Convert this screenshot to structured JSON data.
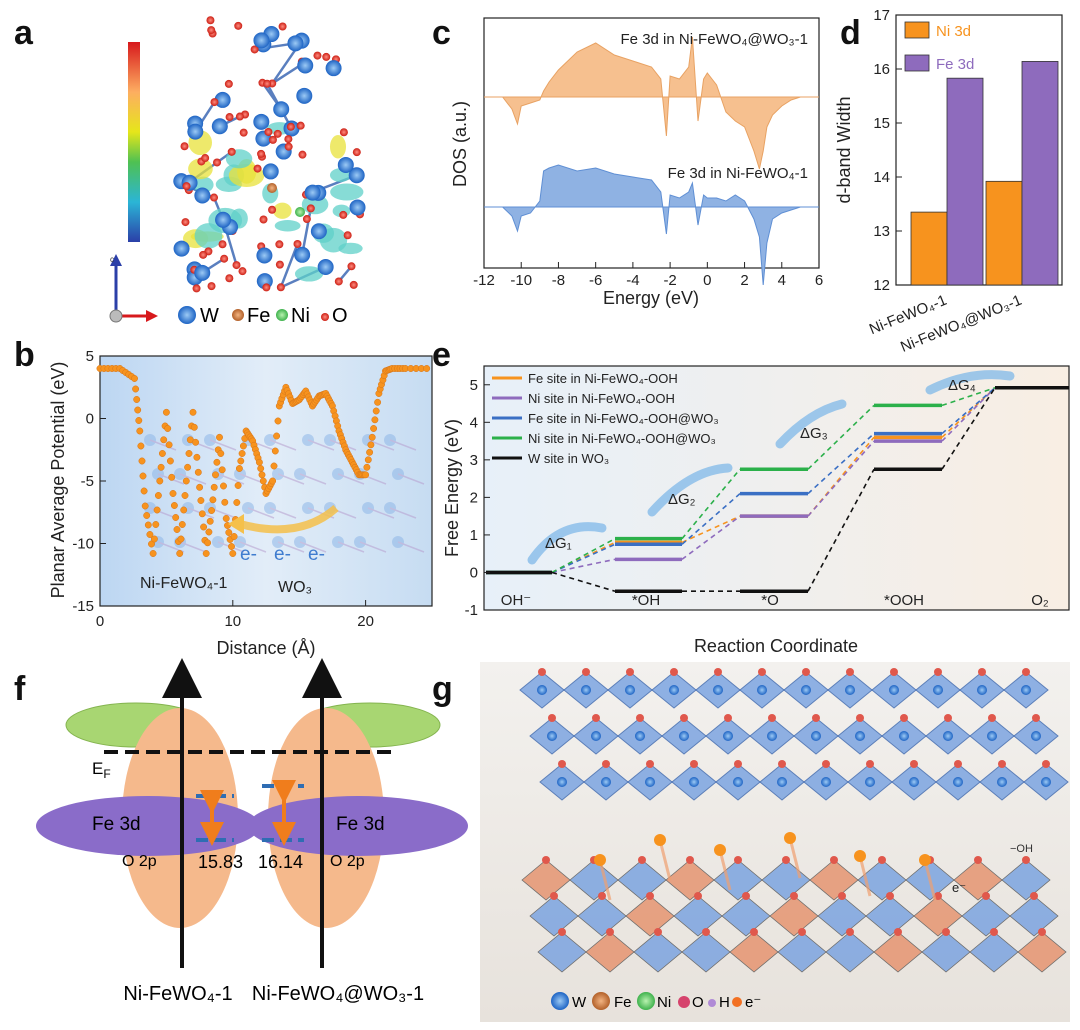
{
  "panels": {
    "a": "a",
    "b": "b",
    "c": "c",
    "d": "d",
    "e": "e",
    "f": "f",
    "g": "g"
  },
  "colors": {
    "orange": "#f7931e",
    "purple": "#8e6bbd",
    "blue": "#3a6fc4",
    "green": "#2bb04a",
    "black": "#111111",
    "dos_top": "#f6c08f",
    "dos_bottom": "#8fb2e3",
    "fe_band": "#8a6cc9",
    "o_band": "#f5b98c",
    "ef_band": "#a8d672"
  },
  "panel_a": {
    "axis_label": "c",
    "legend": [
      {
        "symbol": "W",
        "color": "#2f80d6"
      },
      {
        "symbol": "Fe",
        "color": "#c9733a"
      },
      {
        "symbol": "Ni",
        "color": "#55c86a"
      },
      {
        "symbol": "O",
        "color": "#e0342a"
      }
    ]
  },
  "chart_data": [
    {
      "id": "b",
      "type": "line",
      "title": "",
      "xlabel": "Distance (Å)",
      "ylabel": "Planar Average Potential (eV)",
      "xlim": [
        0,
        25
      ],
      "ylim": [
        -15,
        5
      ],
      "xticks": [
        "0",
        "10",
        "20"
      ],
      "yticks": [
        "5",
        "0",
        "-5",
        "-10",
        "-15"
      ],
      "series": [
        {
          "name": "Planar average potential",
          "x": [
            0,
            1.5,
            2.6,
            3.0,
            3.4,
            4.0,
            4.5,
            5.0,
            5.5,
            6.0,
            6.5,
            7.0,
            7.5,
            8.0,
            8.5,
            9.0,
            9.5,
            10.0,
            10.5,
            11.0,
            11.5,
            12.0,
            12.5,
            13.0,
            13.5,
            14.0,
            14.5,
            15.0,
            15.5,
            16.0,
            16.5,
            17.0,
            17.5,
            18.0,
            18.5,
            19.0,
            19.5,
            20.0,
            20.5,
            21.0,
            21.5,
            22.0,
            23.0,
            25.0
          ],
          "y": [
            4.0,
            4.0,
            3.2,
            -1.0,
            -7.0,
            -10.8,
            -5.0,
            0.5,
            -6.0,
            -10.8,
            -5.0,
            0.5,
            -5.5,
            -10.8,
            -6.5,
            -1.5,
            -8.0,
            -10.8,
            -4.0,
            -1.0,
            -1.8,
            -3.5,
            -6.0,
            -5.0,
            1.0,
            2.5,
            1.2,
            1.5,
            2.2,
            1.0,
            1.8,
            2.0,
            1.0,
            -1.0,
            -2.5,
            -3.5,
            -4.5,
            -4.5,
            -1.5,
            2.0,
            3.8,
            4.0,
            4.0,
            4.0
          ]
        }
      ],
      "annotations": [
        "Ni-FeWO₄-1",
        "WO₃",
        "e-",
        "e-",
        "e-"
      ]
    },
    {
      "id": "c",
      "type": "area",
      "title": "",
      "xlabel": "Energy (eV)",
      "ylabel": "DOS (a.u.)",
      "xlim": [
        -12,
        6
      ],
      "xticks": [
        "-12",
        "-10",
        "-8",
        "-6",
        "-4",
        "-2",
        "0",
        "2",
        "4",
        "6"
      ],
      "series": [
        {
          "name": "Fe 3d in Ni-FeWO₄@WO₃-1",
          "x": [
            -12,
            -11,
            -10.5,
            -10.2,
            -10,
            -9.5,
            -9,
            -8.8,
            -8.5,
            -8,
            -7,
            -6,
            -5,
            -4,
            -3,
            -2.5,
            -2.2,
            -2,
            -1.5,
            -1,
            -0.8,
            -0.5,
            -0.2,
            0,
            0.5,
            1,
            1.5,
            2,
            2.5,
            2.8,
            3,
            3.2,
            3.5,
            4,
            4.5,
            5,
            6
          ],
          "y": [
            0,
            0,
            -0.4,
            -0.9,
            -0.3,
            -0.2,
            -0.1,
            0.2,
            0.5,
            0.9,
            1.5,
            1.8,
            1.4,
            1.2,
            1.0,
            0.6,
            -1.3,
            0.7,
            0.6,
            1.0,
            2.0,
            -0.8,
            0.6,
            0.8,
            0.4,
            -0.5,
            -0.8,
            -1.0,
            -1.8,
            -2.4,
            -1.8,
            -1.0,
            -0.6,
            -0.3,
            -0.1,
            0,
            0
          ]
        },
        {
          "name": "Fe 3d in Ni-FeWO₄-1",
          "x": [
            -12,
            -11,
            -10.5,
            -10.2,
            -10,
            -9.5,
            -9,
            -8.8,
            -8.5,
            -8,
            -7,
            -6,
            -5,
            -4,
            -3,
            -2.5,
            -2.2,
            -2,
            -1.5,
            -1,
            -0.8,
            -0.5,
            -0.2,
            0,
            0.5,
            1,
            1.5,
            2,
            2.5,
            2.8,
            3,
            3.2,
            3.5,
            4,
            4.5,
            5,
            6
          ],
          "y": [
            0,
            0,
            -0.3,
            -0.8,
            -0.3,
            -0.2,
            0.2,
            1.2,
            1.3,
            1.4,
            1.2,
            1.3,
            1.1,
            1.0,
            0.9,
            0.5,
            -0.9,
            0.4,
            0.3,
            0.5,
            0.8,
            -0.6,
            0.4,
            0.3,
            0.3,
            0.2,
            0.4,
            0.2,
            -0.4,
            -1.0,
            -2.6,
            -1.2,
            -0.4,
            -0.2,
            -0.1,
            0,
            0
          ]
        }
      ]
    },
    {
      "id": "d",
      "type": "bar",
      "title": "",
      "xlabel": "",
      "ylabel": "d-band Width",
      "ylim": [
        12,
        17
      ],
      "yticks": [
        "12",
        "13",
        "14",
        "15",
        "16",
        "17"
      ],
      "categories": [
        "Ni-FeWO₄-1",
        "Ni-FeWO₄@WO₃-1"
      ],
      "series": [
        {
          "name": "Ni 3d",
          "values": [
            13.35,
            13.92
          ]
        },
        {
          "name": "Fe 3d",
          "values": [
            15.83,
            16.14
          ]
        }
      ]
    },
    {
      "id": "e",
      "type": "line",
      "title": "",
      "xlabel": "Reaction Coordinate",
      "ylabel": "Free Energy (eV)",
      "ylim": [
        -1,
        5.5
      ],
      "yticks": [
        "5",
        "4",
        "3",
        "2",
        "1",
        "0",
        "-1"
      ],
      "categories": [
        "OH⁻",
        "*OH",
        "*O",
        "*OOH",
        "O₂"
      ],
      "series": [
        {
          "name": "Fe site in Ni-FeWO₄-OOH",
          "values": [
            0,
            0.8,
            1.5,
            3.6,
            4.92
          ]
        },
        {
          "name": "Ni site in Ni-FeWO₄-OOH",
          "values": [
            0,
            0.35,
            1.5,
            3.5,
            4.92
          ]
        },
        {
          "name": "Fe site in Ni-FeWO₄-OOH@WO₃",
          "values": [
            0,
            0.75,
            2.1,
            3.7,
            4.92
          ]
        },
        {
          "name": "Ni site in Ni-FeWO₄-OOH@WO₃",
          "values": [
            0,
            0.9,
            2.75,
            4.45,
            4.92
          ]
        },
        {
          "name": "W site in WO₃",
          "values": [
            0,
            -0.5,
            -0.5,
            2.75,
            4.92
          ]
        }
      ],
      "annotations": [
        "ΔG₁",
        "ΔG₂",
        "ΔG₃",
        "ΔG₄"
      ]
    }
  ],
  "panel_f": {
    "ef_label": "E",
    "ef_sub": "F",
    "fe_label": "Fe 3d",
    "o_label": "O 2p",
    "width_left": "15.83",
    "width_right": "16.14",
    "label_left": "Ni-FeWO₄-1",
    "label_right": "Ni-FeWO₄@WO₃-1"
  },
  "panel_g": {
    "oh_label": "−OH",
    "e_label": "e⁻",
    "legend": [
      {
        "symbol": "W",
        "color": "#2f63c9"
      },
      {
        "symbol": "Fe",
        "color": "#e0742e"
      },
      {
        "symbol": "Ni",
        "color": "#5fd466"
      },
      {
        "symbol": "O",
        "color": "#d6436d"
      },
      {
        "symbol": "H",
        "color": "#b08ad6"
      },
      {
        "symbol": "e⁻",
        "color": "#f27022"
      }
    ]
  }
}
